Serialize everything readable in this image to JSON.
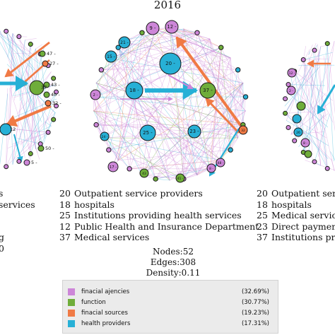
{
  "title": "2016",
  "colors": {
    "financial_agencies": "#cd86d8",
    "function": "#6fad3a",
    "financial_sources": "#f07a45",
    "health_providers": "#27b0d6"
  },
  "center_network": {
    "node_labels": [
      "9 -",
      "12 -",
      "21 -",
      "15 -",
      "20 -",
      "18 -",
      "37 -",
      "2 -",
      "24 -",
      "25 -",
      "23 -",
      "32",
      "17 -",
      "43",
      "41 -",
      "8 -",
      "48 -"
    ]
  },
  "left_network": {
    "node_labels": [
      "47 -",
      "27 -",
      "37",
      "40 -",
      "43 -",
      "32 -",
      "12",
      "50 -",
      "5 -"
    ]
  },
  "right_network": {
    "node_labels": [
      "12 -",
      "2 -",
      "26",
      "8 -"
    ]
  },
  "left_legend_fragments": [
    "s",
    "services",
    "g",
    "0"
  ],
  "center_legend": [
    {
      "num": "20",
      "label": "Outpatient service providers"
    },
    {
      "num": "18",
      "label": "hospitals"
    },
    {
      "num": "25",
      "label": "Institutions providing health services"
    },
    {
      "num": "12",
      "label": "Public Health and Insurance Department"
    },
    {
      "num": "37",
      "label": "Medical services"
    }
  ],
  "right_legend": [
    {
      "num": "20",
      "label": "Outpatient serv"
    },
    {
      "num": "18",
      "label": "hospitals"
    },
    {
      "num": "25",
      "label": "Medical servic"
    },
    {
      "num": "23",
      "label": "Direct paymen"
    },
    {
      "num": "37",
      "label": "Institutions pro"
    }
  ],
  "stats": {
    "nodes": "Nodes:52",
    "edges": "Edges:308",
    "density": "Density:0.11"
  },
  "category_legend": [
    {
      "label": "finacial ajencies",
      "percent": "(32.69%)",
      "color": "#cd86d8"
    },
    {
      "label": "function",
      "percent": "(30.77%)",
      "color": "#6fad3a"
    },
    {
      "label": "finacial sources",
      "percent": "(19.23%)",
      "color": "#f07a45"
    },
    {
      "label": "health providers",
      "percent": "(17.31%)",
      "color": "#27b0d6"
    }
  ]
}
